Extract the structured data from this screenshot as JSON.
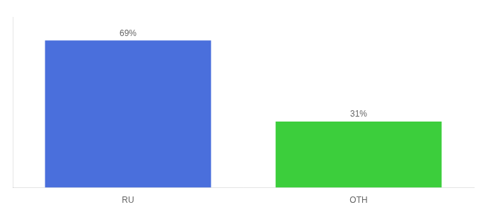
{
  "chart_data": {
    "type": "bar",
    "categories": [
      "RU",
      "OTH"
    ],
    "values": [
      69,
      31
    ],
    "colors": [
      "#4a6fdc",
      "#3cce3c"
    ],
    "ylim": [
      0,
      80
    ],
    "grid": false,
    "tick_labels": "x",
    "data_labels": true,
    "value_labels": [
      "69%",
      "31%"
    ]
  }
}
